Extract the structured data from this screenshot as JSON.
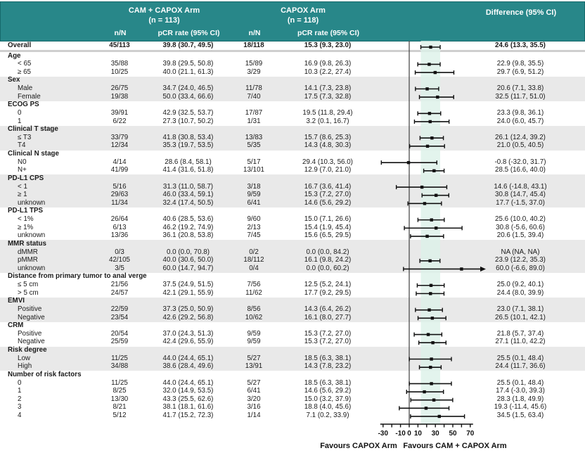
{
  "colors": {
    "header_teal": "#288789",
    "header_border": "#15696b",
    "stripe_gray": "#e9e9e9",
    "shaded_band": "#dcf1e8",
    "line_black": "#111111",
    "zero_line_gray": "#4d4d4d"
  },
  "header": {
    "arm1_title": "CAM + CAPOX Arm",
    "arm1_n": "(n = 113)",
    "arm2_title": "CAPOX Arm",
    "arm2_n": "(n = 118)",
    "diff_title": "Difference (95% CI)",
    "col_nN": "n/N",
    "col_pcr": "pCR rate (95% CI)"
  },
  "footer": {
    "left": "Favours CAPOX Arm",
    "right": "Favours CAM + CAPOX Arm"
  },
  "chart_data": {
    "type": "forest",
    "x_axis": {
      "range": [
        -30,
        70
      ],
      "tick_step": 10,
      "label_ticks": [
        -30,
        -10,
        0,
        10,
        30,
        50,
        70
      ],
      "label_texts": [
        "-30",
        "-10",
        "0",
        "10",
        "30",
        "50",
        "70"
      ]
    },
    "shaded_band": [
      13.3,
      35.5
    ],
    "overall": {
      "label": "Overall",
      "nN1": "45/113",
      "pcr1": "39.8 (30.7, 49.5)",
      "nN2": "18/118",
      "pcr2": "15.3 (9.3, 23.0)",
      "diff": "24.6 (13.3, 35.5)",
      "est": 24.6,
      "lo": 13.3,
      "hi": 35.5
    },
    "sections": [
      {
        "title": "Age",
        "rows": [
          {
            "label": "< 65",
            "nN1": "35/88",
            "pcr1": "39.8 (29.5, 50.8)",
            "nN2": "15/89",
            "pcr2": "16.9 (9.8, 26.3)",
            "diff": "22.9 (9.8, 35.5)",
            "est": 22.9,
            "lo": 9.8,
            "hi": 35.5
          },
          {
            "label": "≥ 65",
            "nN1": "10/25",
            "pcr1": "40.0 (21.1, 61.3)",
            "nN2": "3/29",
            "pcr2": "10.3 (2.2, 27.4)",
            "diff": "29.7 (6.9, 51.2)",
            "est": 29.7,
            "lo": 6.9,
            "hi": 51.2
          }
        ]
      },
      {
        "title": "Sex",
        "rows": [
          {
            "label": "Male",
            "nN1": "26/75",
            "pcr1": "34.7 (24.0, 46.5)",
            "nN2": "11/78",
            "pcr2": "14.1 (7.3, 23.8)",
            "diff": "20.6 (7.1, 33.8)",
            "est": 20.6,
            "lo": 7.1,
            "hi": 33.8
          },
          {
            "label": "Female",
            "nN1": "19/38",
            "pcr1": "50.0 (33.4, 66.6)",
            "nN2": "7/40",
            "pcr2": "17.5 (7.3, 32.8)",
            "diff": "32.5 (11.7, 51.0)",
            "est": 32.5,
            "lo": 11.7,
            "hi": 51.0
          }
        ]
      },
      {
        "title": "ECOG PS",
        "rows": [
          {
            "label": "0",
            "nN1": "39/91",
            "pcr1": "42.9 (32.5, 53.7)",
            "nN2": "17/87",
            "pcr2": "19.5 (11.8, 29.4)",
            "diff": "23.3 (9.8, 36.1)",
            "est": 23.3,
            "lo": 9.8,
            "hi": 36.1
          },
          {
            "label": "1",
            "nN1": "6/22",
            "pcr1": "27.3 (10.7, 50.2)",
            "nN2": "1/31",
            "pcr2": "3.2 (0.1, 16.7)",
            "diff": "24.0 (6.0, 45.7)",
            "est": 24.0,
            "lo": 6.0,
            "hi": 45.7
          }
        ]
      },
      {
        "title": "Clinical T stage",
        "rows": [
          {
            "label": "≤ T3",
            "nN1": "33/79",
            "pcr1": "41.8 (30.8, 53.4)",
            "nN2": "13/83",
            "pcr2": "15.7 (8.6, 25.3)",
            "diff": "26.1 (12.4, 39.2)",
            "est": 26.1,
            "lo": 12.4,
            "hi": 39.2
          },
          {
            "label": "T4",
            "nN1": "12/34",
            "pcr1": "35.3 (19.7, 53.5)",
            "nN2": "5/35",
            "pcr2": "14.3 (4.8, 30.3)",
            "diff": "21.0 (0.5, 40.5)",
            "est": 21.0,
            "lo": 0.5,
            "hi": 40.5
          }
        ]
      },
      {
        "title": "Clinical N stage",
        "rows": [
          {
            "label": "N0",
            "nN1": "4/14",
            "pcr1": "28.6 (8.4, 58.1)",
            "nN2": "5/17",
            "pcr2": "29.4 (10.3, 56.0)",
            "diff": "-0.8 (-32.0, 31.7)",
            "est": -0.8,
            "lo": -32.0,
            "hi": 31.7
          },
          {
            "label": "N+",
            "nN1": "41/99",
            "pcr1": "41.4 (31.6, 51.8)",
            "nN2": "13/101",
            "pcr2": "12.9 (7.0, 21.0)",
            "diff": "28.5 (16.6, 40.0)",
            "est": 28.5,
            "lo": 16.6,
            "hi": 40.0
          }
        ]
      },
      {
        "title": "PD-L1 CPS",
        "rows": [
          {
            "label": "< 1",
            "nN1": "5/16",
            "pcr1": "31.3 (11.0, 58.7)",
            "nN2": "3/18",
            "pcr2": "16.7 (3.6, 41.4)",
            "diff": "14.6 (-14.8, 43.1)",
            "est": 14.6,
            "lo": -14.8,
            "hi": 43.1
          },
          {
            "label": "≥ 1",
            "nN1": "29/63",
            "pcr1": "46.0 (33.4, 59.1)",
            "nN2": "9/59",
            "pcr2": "15.3 (7.2, 27.0)",
            "diff": "30.8 (14.7, 45.4)",
            "est": 30.8,
            "lo": 14.7,
            "hi": 45.4
          },
          {
            "label": "unknown",
            "nN1": "11/34",
            "pcr1": "32.4 (17.4, 50.5)",
            "nN2": "6/41",
            "pcr2": "14.6 (5.6, 29.2)",
            "diff": "17.7 (-1.5, 37.0)",
            "est": 17.7,
            "lo": -1.5,
            "hi": 37.0
          }
        ]
      },
      {
        "title": "PD-L1 TPS",
        "rows": [
          {
            "label": "< 1%",
            "nN1": "26/64",
            "pcr1": "40.6 (28.5, 53.6)",
            "nN2": "9/60",
            "pcr2": "15.0 (7.1, 26.6)",
            "diff": "25.6 (10.0, 40.2)",
            "est": 25.6,
            "lo": 10.0,
            "hi": 40.2
          },
          {
            "label": "≥ 1%",
            "nN1": "6/13",
            "pcr1": "46.2 (19.2, 74.9)",
            "nN2": "2/13",
            "pcr2": "15.4 (1.9, 45.4)",
            "diff": "30.8 (-5.6, 60.6)",
            "est": 30.8,
            "lo": -5.6,
            "hi": 60.6
          },
          {
            "label": "unknown",
            "nN1": "13/36",
            "pcr1": "36.1 (20.8, 53.8)",
            "nN2": "7/45",
            "pcr2": "15.6 (6.5, 29.5)",
            "diff": "20.6 (1.5, 39.4)",
            "est": 20.6,
            "lo": 1.5,
            "hi": 39.4
          }
        ]
      },
      {
        "title": "MMR status",
        "rows": [
          {
            "label": "dMMR",
            "nN1": "0/3",
            "pcr1": "0.0 (0.0, 70.8)",
            "nN2": "0/2",
            "pcr2": "0.0 (0.0, 84.2)",
            "diff": "NA (NA, NA)",
            "est": null,
            "lo": null,
            "hi": null
          },
          {
            "label": "pMMR",
            "nN1": "42/105",
            "pcr1": "40.0 (30.6, 50.0)",
            "nN2": "18/112",
            "pcr2": "16.1 (9.8, 24.2)",
            "diff": "23.9 (12.2, 35.3)",
            "est": 23.9,
            "lo": 12.2,
            "hi": 35.3
          },
          {
            "label": "unknown",
            "nN1": "3/5",
            "pcr1": "60.0 (14.7, 94.7)",
            "nN2": "0/4",
            "pcr2": "0.0 (0.0, 60.2)",
            "diff": "60.0 (-6.6, 89.0)",
            "est": 60.0,
            "lo": -6.6,
            "hi": 89.0,
            "arrow_right": true
          }
        ]
      },
      {
        "title": "Distance from primary tumor to anal verge",
        "rows": [
          {
            "label": "≤ 5 cm",
            "nN1": "21/56",
            "pcr1": "37.5 (24.9, 51.5)",
            "nN2": "7/56",
            "pcr2": "12.5 (5.2, 24.1)",
            "diff": "25.0 (9.2, 40.1)",
            "est": 25.0,
            "lo": 9.2,
            "hi": 40.1
          },
          {
            "label": "> 5 cm",
            "nN1": "24/57",
            "pcr1": "42.1 (29.1, 55.9)",
            "nN2": "11/62",
            "pcr2": "17.7 (9.2, 29.5)",
            "diff": "24.4 (8.0, 39.9)",
            "est": 24.4,
            "lo": 8.0,
            "hi": 39.9
          }
        ]
      },
      {
        "title": "EMVI",
        "rows": [
          {
            "label": "Positive",
            "nN1": "22/59",
            "pcr1": "37.3 (25.0, 50.9)",
            "nN2": "8/56",
            "pcr2": "14.3 (6.4, 26.2)",
            "diff": "23.0 (7.1, 38.1)",
            "est": 23.0,
            "lo": 7.1,
            "hi": 38.1
          },
          {
            "label": "Negative",
            "nN1": "23/54",
            "pcr1": "42.6 (29.2, 56.8)",
            "nN2": "10/62",
            "pcr2": "16.1 (8.0, 27.7)",
            "diff": "26.5 (10.1, 42.1)",
            "est": 26.5,
            "lo": 10.1,
            "hi": 42.1
          }
        ]
      },
      {
        "title": "CRM",
        "rows": [
          {
            "label": "Positive",
            "nN1": "20/54",
            "pcr1": "37.0 (24.3, 51.3)",
            "nN2": "9/59",
            "pcr2": "15.3 (7.2, 27.0)",
            "diff": "21.8 (5.7, 37.4)",
            "est": 21.8,
            "lo": 5.7,
            "hi": 37.4
          },
          {
            "label": "Negative",
            "nN1": "25/59",
            "pcr1": "42.4 (29.6, 55.9)",
            "nN2": "9/59",
            "pcr2": "15.3 (7.2, 27.0)",
            "diff": "27.1 (11.0, 42.2)",
            "est": 27.1,
            "lo": 11.0,
            "hi": 42.2
          }
        ]
      },
      {
        "title": "Risk degree",
        "rows": [
          {
            "label": "Low",
            "nN1": "11/25",
            "pcr1": "44.0 (24.4, 65.1)",
            "nN2": "5/27",
            "pcr2": "18.5 (6.3, 38.1)",
            "diff": "25.5 (0.1, 48.4)",
            "est": 25.5,
            "lo": 0.1,
            "hi": 48.4
          },
          {
            "label": "High",
            "nN1": "34/88",
            "pcr1": "38.6 (28.4, 49.6)",
            "nN2": "13/91",
            "pcr2": "14.3 (7.8, 23.2)",
            "diff": "24.4 (11.7, 36.6)",
            "est": 24.4,
            "lo": 11.7,
            "hi": 36.6
          }
        ]
      },
      {
        "title": "Number of risk factors",
        "rows": [
          {
            "label": "0",
            "nN1": "11/25",
            "pcr1": "44.0 (24.4, 65.1)",
            "nN2": "5/27",
            "pcr2": "18.5 (6.3, 38.1)",
            "diff": "25.5 (0.1, 48.4)",
            "est": 25.5,
            "lo": 0.1,
            "hi": 48.4
          },
          {
            "label": "1",
            "nN1": "8/25",
            "pcr1": "32.0 (14.9, 53.5)",
            "nN2": "6/41",
            "pcr2": "14.6 (5.6, 29.2)",
            "diff": "17.4 (-3.0, 39.3)",
            "est": 17.4,
            "lo": -3.0,
            "hi": 39.3
          },
          {
            "label": "2",
            "nN1": "13/30",
            "pcr1": "43.3 (25.5, 62.6)",
            "nN2": "3/20",
            "pcr2": "15.0 (3.2, 37.9)",
            "diff": "28.3 (1.8, 49.9)",
            "est": 28.3,
            "lo": 1.8,
            "hi": 49.9
          },
          {
            "label": "3",
            "nN1": "8/21",
            "pcr1": "38.1 (18.1, 61.6)",
            "nN2": "3/16",
            "pcr2": "18.8 (4.0, 45.6)",
            "diff": "19.3 (-11.4, 45.6)",
            "est": 19.3,
            "lo": -11.4,
            "hi": 45.6
          },
          {
            "label": "4",
            "nN1": "5/12",
            "pcr1": "41.7 (15.2, 72.3)",
            "nN2": "1/14",
            "pcr2": "7.1 (0.2, 33.9)",
            "diff": "34.5 (1.5, 63.4)",
            "est": 34.5,
            "lo": 1.5,
            "hi": 63.4
          }
        ]
      }
    ]
  }
}
